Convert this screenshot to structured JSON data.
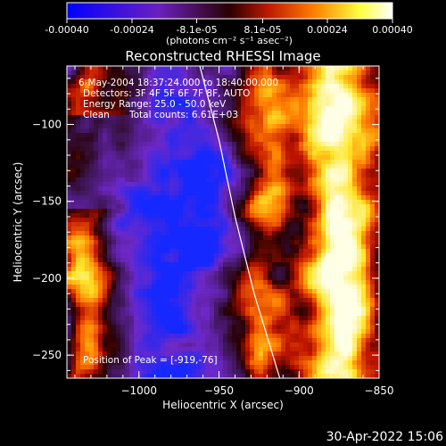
{
  "colorbar": {
    "tick_labels": [
      "-0.00040",
      "-0.00024",
      "-8.1e-05",
      "8.1e-05",
      "0.00024",
      "0.00040"
    ],
    "tick_values": [
      -0.0004,
      -0.00024,
      -8.1e-05,
      8.1e-05,
      0.00024,
      0.0004
    ],
    "range": [
      -0.0004,
      0.0004
    ],
    "units_label": "(photons cm⁻² s⁻¹ asec⁻²)",
    "colors": [
      "#0000ff",
      "#6a20c0",
      "#3a0000",
      "#c01a00",
      "#ff8000",
      "#ffff40",
      "#ffffff"
    ]
  },
  "chart_data": {
    "type": "heatmap",
    "title": "Reconstructed RHESSI Image",
    "xlabel": "Heliocentric X (arcsec)",
    "ylabel": "Heliocentric Y (arcsec)",
    "xlim": [
      -1045,
      -850
    ],
    "ylim": [
      -265,
      -62
    ],
    "x_ticks": [
      -1000,
      -950,
      -900,
      -850
    ],
    "x_tick_labels": [
      "−1000",
      "−950",
      "−900",
      "−850"
    ],
    "y_ticks": [
      -100,
      -150,
      -200,
      -250
    ],
    "y_tick_labels": [
      "−100",
      "−150",
      "−200",
      "−250"
    ],
    "limb_curve": [
      [
        -962,
        -62
      ],
      [
        -950,
        -110
      ],
      [
        -940,
        -160
      ],
      [
        -928,
        -210
      ],
      [
        -912,
        -265
      ]
    ],
    "annotations": {
      "time_range": "6-May-2004 18:37:24.000 to 18:40:00.000",
      "detectors": "Detectors: 3F 4F 5F 6F 7F 8F, AUTO",
      "energy_range": "Energy Range: 25.0 - 50.0 keV",
      "clean_method": "Clean",
      "total_counts": "Total counts: 6.61E+03",
      "peak_position": "Position of Peak = [-919,-76]"
    }
  },
  "timestamp": "30-Apr-2022 15:06"
}
